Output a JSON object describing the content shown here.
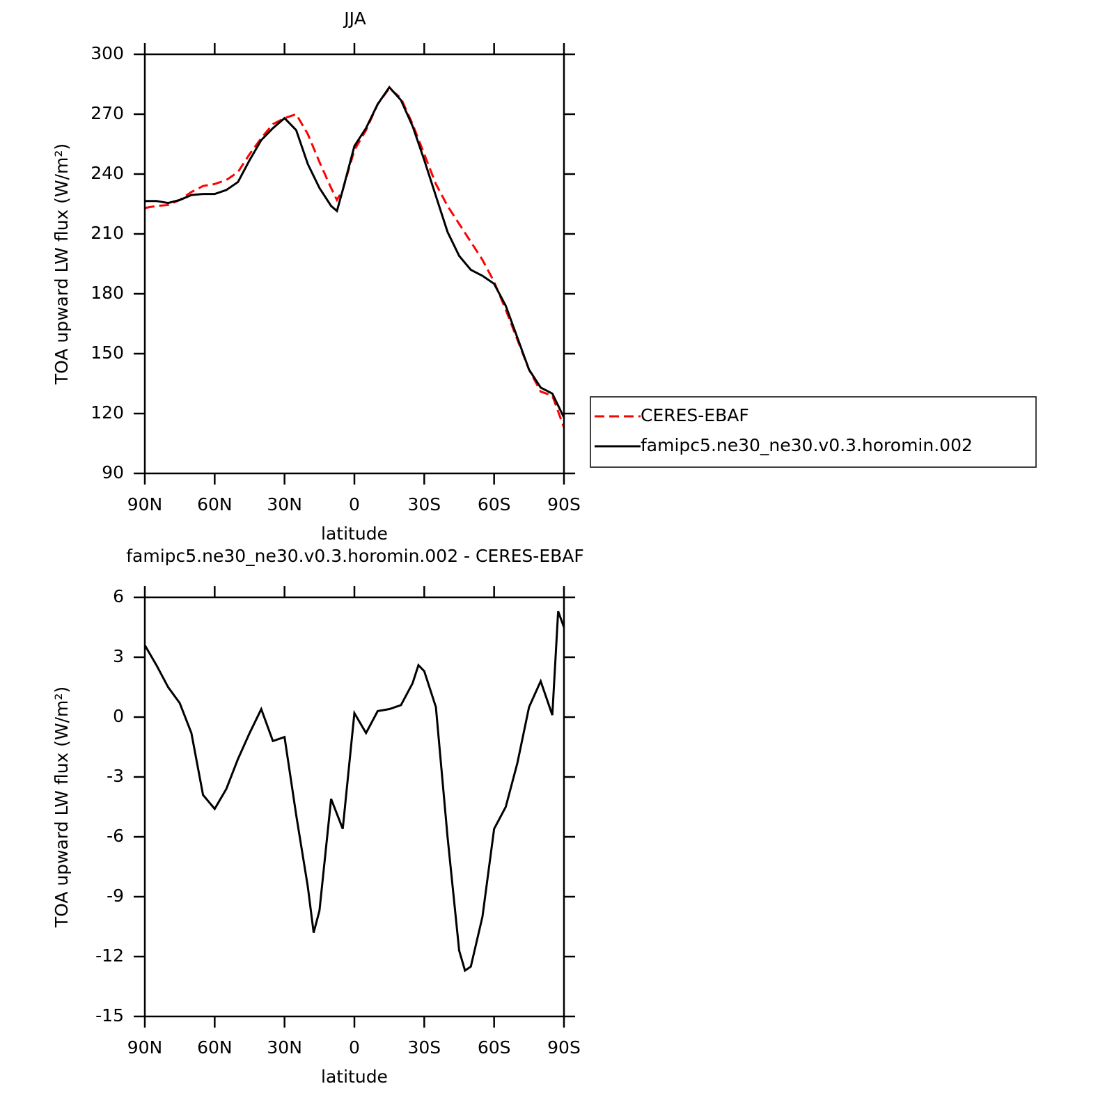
{
  "chart_data": [
    {
      "type": "line",
      "title": "JJA",
      "xlabel": "latitude",
      "ylabel": "TOA upward LW flux (W/m²)",
      "x": [
        90,
        85,
        80,
        75,
        70,
        65,
        60,
        55,
        50,
        45,
        40,
        35,
        30,
        25,
        20,
        15,
        10,
        7.5,
        5,
        0,
        -5,
        -10,
        -15,
        -20,
        -25,
        -30,
        -35,
        -40,
        -45,
        -50,
        -55,
        -60,
        -65,
        -70,
        -75,
        -80,
        -85,
        -90
      ],
      "series": [
        {
          "name": "CERES-EBAF",
          "color": "#ff0000",
          "linestyle": "dashed",
          "values": [
            223,
            224,
            224.5,
            227,
            231,
            234,
            235,
            237,
            241,
            250,
            258,
            265,
            268,
            270,
            260,
            246,
            233,
            227,
            232,
            252,
            262,
            275,
            283,
            278,
            265,
            250,
            235,
            224,
            215,
            206,
            197,
            186,
            172,
            157,
            142,
            131,
            129,
            113
          ]
        },
        {
          "name": "famipc5.ne30_ne30.v0.3.horomin.002",
          "color": "#000000",
          "linestyle": "solid",
          "values": [
            226.5,
            226.5,
            225.5,
            227,
            229.5,
            230,
            230,
            232,
            236,
            247,
            257,
            263,
            268,
            262,
            245,
            233,
            224,
            221.5,
            232,
            254,
            263,
            275,
            283.5,
            277,
            264,
            247,
            229,
            211,
            199,
            192,
            189,
            185,
            174,
            158,
            142,
            133,
            130,
            118
          ]
        }
      ],
      "xlim": [
        90,
        -90
      ],
      "xticks": [
        {
          "value": 90,
          "label": "90N"
        },
        {
          "value": 60,
          "label": "60N"
        },
        {
          "value": 30,
          "label": "30N"
        },
        0,
        {
          "value": -30,
          "label": "30S"
        },
        {
          "value": -60,
          "label": "60S"
        },
        {
          "value": -90,
          "label": "90S"
        }
      ],
      "ylim": [
        90,
        300
      ],
      "yticks": [
        90,
        120,
        150,
        180,
        210,
        240,
        270,
        300
      ],
      "legend": true
    },
    {
      "type": "line",
      "title": "famipc5.ne30_ne30.v0.3.horomin.002 - CERES-EBAF",
      "xlabel": "latitude",
      "ylabel": "TOA upward LW flux (W/m²)",
      "x": [
        90,
        85,
        80,
        75,
        70,
        65,
        60,
        55,
        50,
        45,
        40,
        35,
        30,
        25,
        20,
        17.5,
        15,
        10,
        5,
        0,
        -5,
        -10,
        -15,
        -20,
        -25,
        -27.5,
        -30,
        -35,
        -40,
        -45,
        -47.5,
        -50,
        -55,
        -60,
        -65,
        -70,
        -75,
        -80,
        -85,
        -87.5,
        -90
      ],
      "series": [
        {
          "color": "#000000",
          "linestyle": "solid",
          "values": [
            3.6,
            2.6,
            1.5,
            0.7,
            -0.8,
            -3.9,
            -4.6,
            -3.6,
            -2.1,
            -0.8,
            0.4,
            -1.2,
            -1.0,
            -4.9,
            -8.5,
            -10.8,
            -9.7,
            -4.1,
            -5.6,
            0.2,
            -0.8,
            0.3,
            0.4,
            0.6,
            1.7,
            2.6,
            2.3,
            0.5,
            -6.0,
            -11.7,
            -12.7,
            -12.5,
            -10.0,
            -5.6,
            -4.5,
            -2.3,
            0.5,
            1.8,
            0.1,
            5.3,
            4.5
          ]
        }
      ],
      "xlim": [
        90,
        -90
      ],
      "xticks": [
        {
          "value": 90,
          "label": "90N"
        },
        {
          "value": 60,
          "label": "60N"
        },
        {
          "value": 30,
          "label": "30N"
        },
        0,
        {
          "value": -30,
          "label": "30S"
        },
        {
          "value": -60,
          "label": "60S"
        },
        {
          "value": -90,
          "label": "90S"
        }
      ],
      "ylim": [
        -15,
        6
      ],
      "yticks": [
        -15,
        -12,
        -9,
        -6,
        -3,
        0,
        3,
        6
      ],
      "legend": false
    }
  ]
}
